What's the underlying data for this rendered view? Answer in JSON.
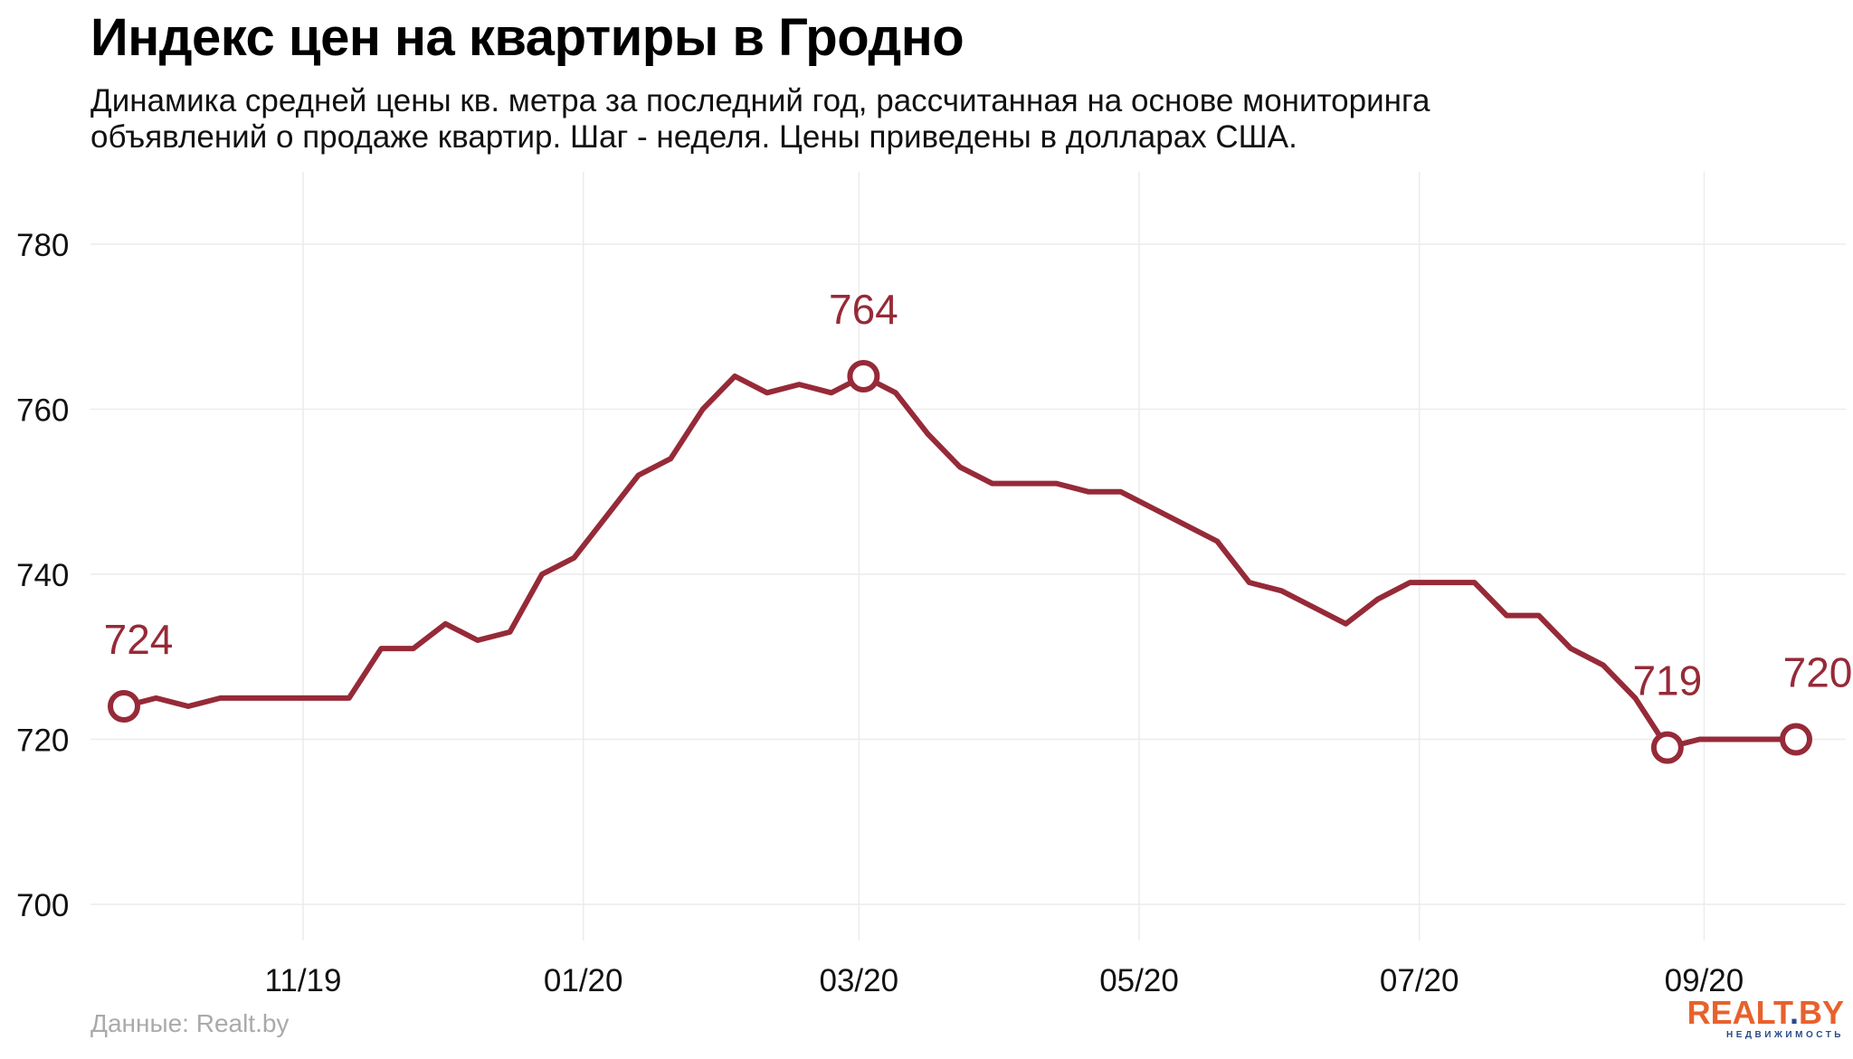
{
  "title": "Индекс цен на квартиры в Гродно",
  "subtitle_line1": "Динамика средней цены кв. метра за последний год, рассчитанная на основе мониторинга",
  "subtitle_line2": "объявлений о продаже квартир. Шаг - неделя. Цены приведены в долларах США.",
  "source": "Данные: Realt.by",
  "logo": {
    "text_main": "REALT",
    "text_suffix": "BY",
    "text_sub": "НЕДВИЖИМОСТЬ"
  },
  "colors": {
    "line": "#962a38",
    "grid": "#ececec",
    "logo_orange": "#e8612c",
    "logo_blue": "#2a4a8a"
  },
  "chart_data": {
    "type": "line",
    "x": [
      "2019-10-07",
      "2019-10-14",
      "2019-10-21",
      "2019-10-28",
      "2019-11-04",
      "2019-11-11",
      "2019-11-18",
      "2019-11-25",
      "2019-12-02",
      "2019-12-09",
      "2019-12-16",
      "2019-12-23",
      "2019-12-30",
      "2020-01-06",
      "2020-01-13",
      "2020-01-20",
      "2020-01-27",
      "2020-02-03",
      "2020-02-10",
      "2020-02-17",
      "2020-02-24",
      "2020-03-02",
      "2020-03-09",
      "2020-03-16",
      "2020-03-23",
      "2020-03-30",
      "2020-04-06",
      "2020-04-13",
      "2020-04-20",
      "2020-04-27",
      "2020-05-04",
      "2020-05-11",
      "2020-05-18",
      "2020-05-25",
      "2020-06-01",
      "2020-06-08",
      "2020-06-15",
      "2020-06-22",
      "2020-06-29",
      "2020-07-06",
      "2020-07-13",
      "2020-07-20",
      "2020-07-27",
      "2020-08-03",
      "2020-08-10",
      "2020-08-17",
      "2020-08-24",
      "2020-08-31",
      "2020-09-07",
      "2020-09-14",
      "2020-09-21",
      "2020-09-28",
      "2020-10-05"
    ],
    "series": [
      {
        "values": [
          724,
          725,
          724,
          725,
          725,
          725,
          725,
          725,
          731,
          731,
          734,
          732,
          733,
          740,
          742,
          747,
          752,
          754,
          760,
          764,
          762,
          763,
          762,
          764,
          762,
          757,
          753,
          751,
          751,
          751,
          750,
          750,
          748,
          746,
          744,
          739,
          738,
          736,
          734,
          737,
          739,
          739,
          739,
          735,
          735,
          731,
          729,
          725,
          719,
          720,
          720,
          720,
          720
        ]
      }
    ],
    "highlights": [
      {
        "x": "2019-10-07",
        "y": 724,
        "label": "724"
      },
      {
        "x": "2020-03-16",
        "y": 764,
        "label": "764"
      },
      {
        "x": "2020-09-07",
        "y": 719,
        "label": "719"
      },
      {
        "x": "2020-10-05",
        "y": 720,
        "label": "720"
      }
    ],
    "x_ticks": [
      {
        "date": "2019-11-15",
        "label": "11/19"
      },
      {
        "date": "2020-01-15",
        "label": "01/20"
      },
      {
        "date": "2020-03-15",
        "label": "03/20"
      },
      {
        "date": "2020-05-15",
        "label": "05/20"
      },
      {
        "date": "2020-07-15",
        "label": "07/20"
      },
      {
        "date": "2020-09-15",
        "label": "09/20"
      }
    ],
    "y_ticks": [
      700,
      720,
      740,
      760,
      780
    ],
    "ylim": [
      700,
      780
    ],
    "xlabel": "",
    "ylabel": "",
    "grid": true
  }
}
